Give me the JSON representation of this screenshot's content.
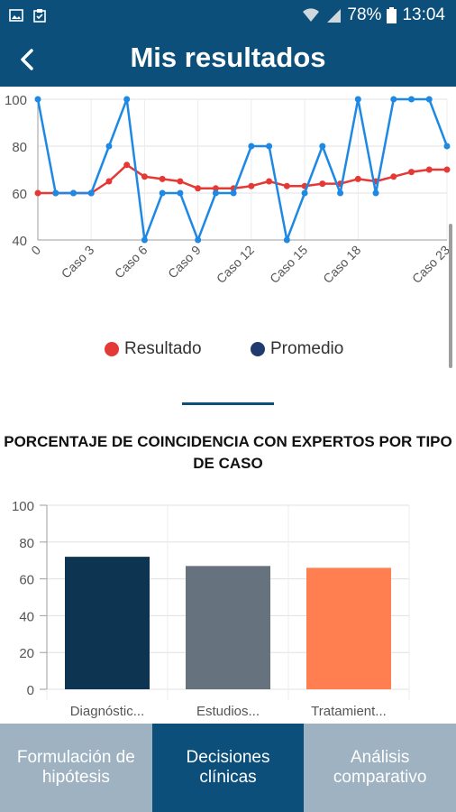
{
  "status_bar": {
    "battery": "78%",
    "time": "13:04",
    "icons": [
      "image-icon",
      "clipboard-icon",
      "wifi-icon",
      "signal-icon",
      "battery-icon"
    ]
  },
  "app_bar": {
    "title": "Mis resultados",
    "back_icon": "chevron-left-icon"
  },
  "colors": {
    "primary": "#0b4f7a",
    "resultado": "#e53935",
    "promedio": "#1e88e5",
    "legend_promedio": "#1f3a6e",
    "tab_inactive": "#9fb2c2",
    "bar1": "#0d3551",
    "bar2": "#66737f",
    "bar3": "#ff7f50"
  },
  "legend": {
    "resultado": "Resultado",
    "promedio": "Promedio"
  },
  "section_title": "PORCENTAJE DE COINCIDENCIA CON EXPERTOS POR TIPO DE CASO",
  "tabs": [
    {
      "label": "Formulación de hipótesis",
      "active": false
    },
    {
      "label": "Decisiones clínicas",
      "active": true
    },
    {
      "label": "Análisis comparativo",
      "active": false
    }
  ],
  "chart_data": [
    {
      "type": "line",
      "x": [
        0,
        1,
        2,
        3,
        4,
        5,
        6,
        7,
        8,
        9,
        10,
        11,
        12,
        13,
        14,
        15,
        16,
        17,
        18,
        19,
        20,
        21,
        22,
        23
      ],
      "x_tick_labels": [
        "0",
        "Caso 3",
        "Caso 6",
        "Caso 9",
        "Caso 12",
        "Caso 15",
        "Caso 18",
        "Caso 23"
      ],
      "x_tick_positions": [
        0,
        3,
        6,
        9,
        12,
        15,
        18,
        23
      ],
      "ylim": [
        40,
        100
      ],
      "y_ticks": [
        40,
        60,
        80,
        100
      ],
      "grid": true,
      "legend": "bottom",
      "series": [
        {
          "name": "Resultado",
          "values": [
            60,
            60,
            60,
            60,
            65,
            72,
            67,
            66,
            65,
            62,
            62,
            62,
            63,
            65,
            63,
            63,
            64,
            64,
            66,
            65,
            67,
            69,
            70,
            70
          ]
        },
        {
          "name": "Promedio",
          "values": [
            100,
            60,
            60,
            60,
            80,
            100,
            40,
            60,
            60,
            40,
            60,
            60,
            80,
            80,
            40,
            60,
            80,
            60,
            100,
            60,
            100,
            100,
            100,
            80
          ]
        }
      ]
    },
    {
      "type": "bar",
      "categories": [
        "Diagnóstic...",
        "Estudios...",
        "Tratamient..."
      ],
      "values": [
        72,
        67,
        66
      ],
      "ylim": [
        0,
        100
      ],
      "y_ticks": [
        0,
        20,
        40,
        60,
        80,
        100
      ],
      "grid": true
    }
  ]
}
